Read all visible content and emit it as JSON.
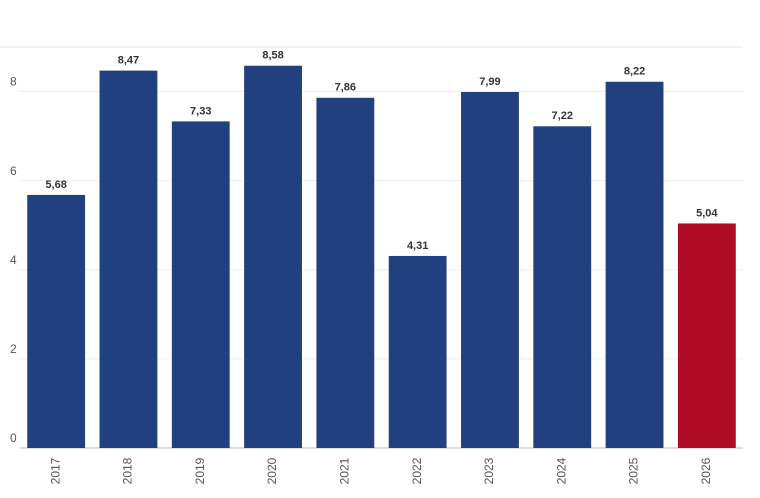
{
  "chart_data": {
    "type": "bar",
    "categories": [
      "2017",
      "2018",
      "2019",
      "2020",
      "2021",
      "2022",
      "2023",
      "2024",
      "2025",
      "2026"
    ],
    "values": [
      5.68,
      8.47,
      7.33,
      8.58,
      7.86,
      4.31,
      7.99,
      7.22,
      8.22,
      5.04
    ],
    "value_labels": [
      "5,68",
      "8,47",
      "7,33",
      "8,58",
      "7,86",
      "4,31",
      "7,99",
      "7,22",
      "8,22",
      "5,04"
    ],
    "colors": [
      "#21407f",
      "#21407f",
      "#21407f",
      "#21407f",
      "#21407f",
      "#21407f",
      "#21407f",
      "#21407f",
      "#21407f",
      "#b00c28"
    ],
    "ylim": [
      0,
      9
    ],
    "yticks": [
      0,
      2,
      4,
      6,
      8
    ],
    "grid": true
  }
}
